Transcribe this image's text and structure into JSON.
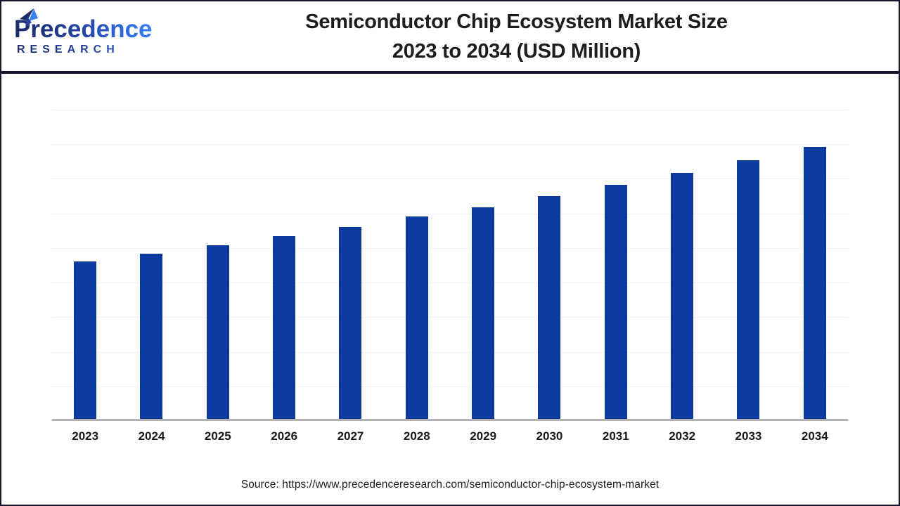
{
  "logo": {
    "brand": "Precedence",
    "subtitle": "RESEARCH"
  },
  "header": {
    "title_line1": "Semiconductor Chip Ecosystem Market Size",
    "title_line2": "2023 to 2034 (USD Million)"
  },
  "footer": {
    "source": "Source: https://www.precedenceresearch.com/semiconductor-chip-ecosystem-market"
  },
  "colors": {
    "bar": "#0d3a9f",
    "logo_dark": "#1b2a6b",
    "logo_light": "#3b82f6",
    "axis_line": "#b3b3b3",
    "gridline": "#f2f2f2",
    "border": "#15152b",
    "title_text": "#1d1d1d"
  },
  "chart_data": {
    "type": "bar",
    "title": "Semiconductor Chip Ecosystem Market Size 2023 to 2034 (USD Million)",
    "categories": [
      "2023",
      "2024",
      "2025",
      "2026",
      "2027",
      "2028",
      "2029",
      "2030",
      "2031",
      "2032",
      "2033",
      "2034"
    ],
    "values": [
      4.55,
      4.78,
      5.02,
      5.28,
      5.55,
      5.85,
      6.12,
      6.44,
      6.77,
      7.11,
      7.48,
      7.87
    ],
    "value_note": "Y-axis has no tick labels in the image; values are estimated in gridline units read from bar pixel heights (~5% year-over-year growth).",
    "xlabel": "",
    "ylabel": "",
    "ylim": [
      0,
      9
    ],
    "gridline_count": 9,
    "grid": true,
    "legend": false,
    "bar_color": "#0d3a9f"
  }
}
